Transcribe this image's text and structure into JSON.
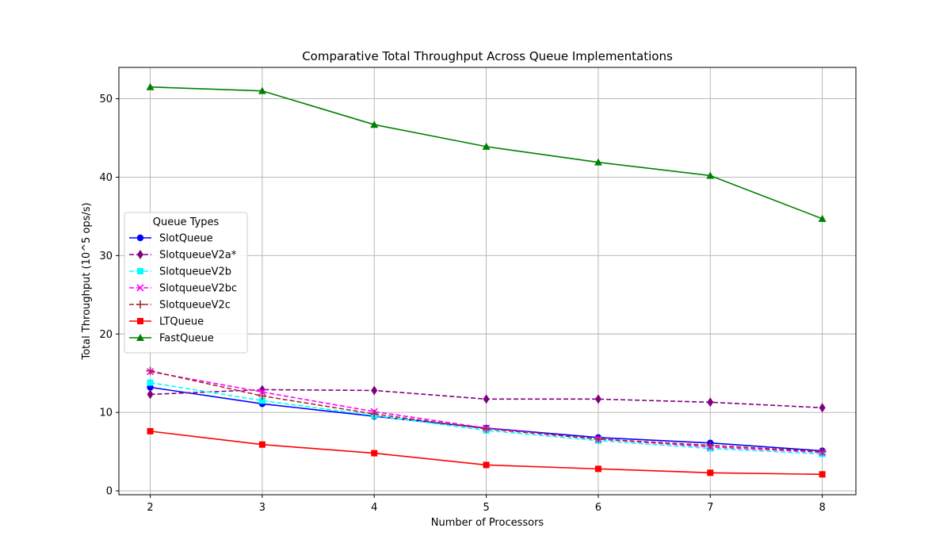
{
  "chart_data": {
    "type": "line",
    "title": "Comparative Total Throughput Across Queue Implementations",
    "xlabel": "Number of Processors",
    "ylabel": "Total Throughput (10^5 ops/s)",
    "x": [
      2,
      3,
      4,
      5,
      6,
      7,
      8
    ],
    "xlim": [
      1.72,
      8.3
    ],
    "ylim": [
      -0.5,
      54
    ],
    "xticks": [
      "2",
      "3",
      "4",
      "5",
      "6",
      "7",
      "8"
    ],
    "yticks": [
      "0",
      "10",
      "20",
      "30",
      "40",
      "50"
    ],
    "grid": true,
    "legend": {
      "title": "Queue Types",
      "placement": "center-left"
    },
    "series": [
      {
        "name": "SlotQueue",
        "color": "#0000ff",
        "dash": "solid",
        "marker": "circle",
        "values": [
          13.2,
          11.1,
          9.5,
          8.0,
          6.8,
          6.1,
          5.1
        ]
      },
      {
        "name": "SlotqueueV2a*",
        "color": "#800080",
        "dash": "dashed",
        "marker": "diamond",
        "values": [
          12.3,
          12.9,
          12.8,
          11.7,
          11.7,
          11.3,
          10.6
        ]
      },
      {
        "name": "SlotqueueV2b",
        "color": "#00ffff",
        "dash": "dashed",
        "marker": "square",
        "values": [
          13.8,
          11.5,
          9.6,
          7.7,
          6.4,
          5.4,
          4.7
        ]
      },
      {
        "name": "SlotqueueV2bc",
        "color": "#ff00ff",
        "dash": "dashed",
        "marker": "x",
        "values": [
          15.2,
          12.6,
          10.1,
          8.0,
          6.6,
          5.6,
          4.9
        ]
      },
      {
        "name": "SlotqueueV2c",
        "color": "#a52a2a",
        "dash": "dashed",
        "marker": "plus",
        "values": [
          15.3,
          12.1,
          9.8,
          7.9,
          6.6,
          5.8,
          5.0
        ]
      },
      {
        "name": "LTQueue",
        "color": "#ff0000",
        "dash": "solid",
        "marker": "square",
        "values": [
          7.6,
          5.9,
          4.8,
          3.3,
          2.8,
          2.3,
          2.1
        ]
      },
      {
        "name": "FastQueue",
        "color": "#008000",
        "dash": "solid",
        "marker": "triangle",
        "values": [
          51.5,
          51.0,
          46.7,
          43.9,
          41.9,
          40.2,
          34.7
        ]
      }
    ]
  }
}
